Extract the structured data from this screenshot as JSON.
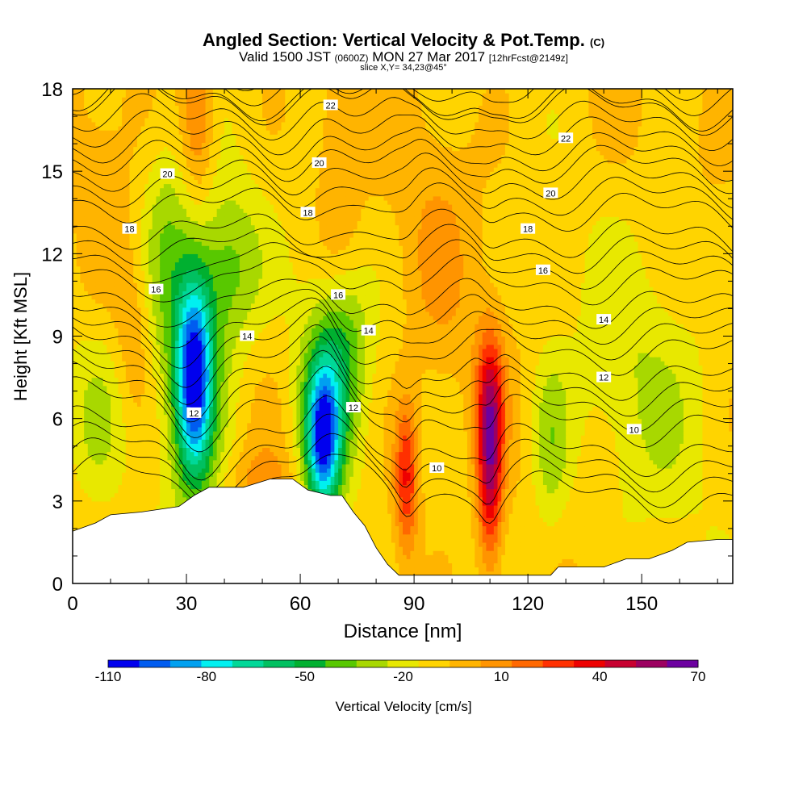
{
  "chart_data": {
    "type": "heatmap",
    "title": "Angled Section: Vertical Velocity & Pot.Temp.",
    "title_unit": "(C)",
    "subtitle_main": "Valid 1500 JST",
    "subtitle_utc": "(0600Z)",
    "subtitle_date": "MON 27 Mar 2017",
    "subtitle_run": "[12hrFcst@2149z]",
    "slice_label": "slice X,Y= 34,23@45°",
    "xlabel": "Distance [nm]",
    "ylabel": "Height [Kft MSL]",
    "xlim": [
      0,
      174
    ],
    "ylim": [
      0,
      18
    ],
    "xticks": [
      0,
      30,
      60,
      90,
      120,
      150
    ],
    "yticks": [
      0,
      3,
      6,
      9,
      12,
      15,
      18
    ],
    "grid": false,
    "colorbar": {
      "label": "Vertical Velocity [cm/s]",
      "ticks": [
        -110,
        -80,
        -50,
        -20,
        10,
        40,
        70
      ],
      "min": -110,
      "max": 70,
      "step": 10,
      "colors": [
        "#0000ee",
        "#005cf0",
        "#00a0f0",
        "#00f0f0",
        "#00d898",
        "#00c060",
        "#00b030",
        "#58c800",
        "#a8d800",
        "#e8e800",
        "#ffd400",
        "#ffb400",
        "#ff9400",
        "#ff6800",
        "#ff3000",
        "#ee0000",
        "#c80030",
        "#9c0060",
        "#6c00a0"
      ]
    },
    "terrain": [
      [
        0,
        1.9
      ],
      [
        6,
        2.2
      ],
      [
        10,
        2.5
      ],
      [
        18,
        2.6
      ],
      [
        28,
        2.8
      ],
      [
        32,
        3.2
      ],
      [
        36,
        3.5
      ],
      [
        45,
        3.5
      ],
      [
        52,
        3.8
      ],
      [
        58,
        3.8
      ],
      [
        62,
        3.4
      ],
      [
        68,
        3.2
      ],
      [
        71,
        3.2
      ],
      [
        74,
        2.6
      ],
      [
        77,
        2.1
      ],
      [
        80,
        1.3
      ],
      [
        83,
        0.7
      ],
      [
        86,
        0.3
      ],
      [
        88,
        0.3
      ],
      [
        92,
        0.3
      ],
      [
        100,
        0.3
      ],
      [
        108,
        0.3
      ],
      [
        114,
        0.3
      ],
      [
        120,
        0.3
      ],
      [
        126,
        0.3
      ],
      [
        128,
        0.6
      ],
      [
        140,
        0.6
      ],
      [
        146,
        0.9
      ],
      [
        152,
        0.9
      ],
      [
        158,
        1.2
      ],
      [
        162,
        1.5
      ],
      [
        170,
        1.6
      ],
      [
        174,
        1.6
      ]
    ],
    "velocity_cells": [
      {
        "x": 32,
        "y": 7.5,
        "sx": 3.2,
        "sy": 2.4,
        "value": -80
      },
      {
        "x": 32,
        "y": 8.0,
        "sx": 6.5,
        "sy": 3.8,
        "value": -35
      },
      {
        "x": 42,
        "y": 11.5,
        "sx": 6,
        "sy": 2.2,
        "value": -28
      },
      {
        "x": 66,
        "y": 5.2,
        "sx": 3,
        "sy": 1.8,
        "value": -75
      },
      {
        "x": 67,
        "y": 6.5,
        "sx": 6,
        "sy": 2.8,
        "value": -40
      },
      {
        "x": 72,
        "y": 9.0,
        "sx": 4.5,
        "sy": 1.8,
        "value": -18
      },
      {
        "x": 24,
        "y": 13.0,
        "sx": 4.5,
        "sy": 3.0,
        "value": -20
      },
      {
        "x": 88,
        "y": 3.8,
        "sx": 2.2,
        "sy": 1.9,
        "value": 45
      },
      {
        "x": 110,
        "y": 4.4,
        "sx": 2.3,
        "sy": 2.6,
        "value": 62
      },
      {
        "x": 110,
        "y": 7.0,
        "sx": 3.0,
        "sy": 1.8,
        "value": 22
      },
      {
        "x": 33,
        "y": 17,
        "sx": 3,
        "sy": 2.2,
        "value": 28
      },
      {
        "x": 70,
        "y": 15,
        "sx": 4,
        "sy": 3.0,
        "value": 14
      },
      {
        "x": 96,
        "y": 12,
        "sx": 7,
        "sy": 3.5,
        "value": 10
      },
      {
        "x": 16,
        "y": 8.8,
        "sx": 3.5,
        "sy": 2.2,
        "value": 15
      },
      {
        "x": 6,
        "y": 14,
        "sx": 5,
        "sy": 3,
        "value": 8
      },
      {
        "x": 50,
        "y": 3.8,
        "sx": 6,
        "sy": 0.8,
        "value": 14
      },
      {
        "x": 150,
        "y": 7,
        "sx": 14,
        "sy": 4,
        "value": -16
      },
      {
        "x": 126,
        "y": 5,
        "sx": 3.5,
        "sy": 2.5,
        "value": -22
      },
      {
        "x": 6,
        "y": 6,
        "sx": 6,
        "sy": 2.5,
        "value": -16
      }
    ],
    "isentropes": [
      {
        "label": "10",
        "base": 3.5,
        "labels": [
          [
            96,
            4.2
          ],
          [
            148,
            5.6
          ]
        ]
      },
      {
        "label": "12",
        "base": 6.2,
        "labels": [
          [
            32,
            6.2
          ],
          [
            74,
            6.4
          ],
          [
            140,
            7.5
          ]
        ]
      },
      {
        "label": "14",
        "base": 8.6,
        "labels": [
          [
            46,
            9.0
          ],
          [
            78,
            9.2
          ],
          [
            140,
            9.6
          ]
        ]
      },
      {
        "label": "16",
        "base": 11.1,
        "labels": [
          [
            22,
            10.7
          ],
          [
            70,
            10.5
          ],
          [
            124,
            11.4
          ]
        ]
      },
      {
        "label": "18",
        "base": 13.7,
        "labels": [
          [
            15,
            12.9
          ],
          [
            62,
            13.5
          ],
          [
            120,
            12.9
          ]
        ]
      },
      {
        "label": "20",
        "base": 15.8,
        "labels": [
          [
            25,
            14.9
          ],
          [
            65,
            15.3
          ],
          [
            126,
            14.2
          ]
        ]
      },
      {
        "label": "22",
        "base": 17.6,
        "labels": [
          [
            68,
            17.4
          ],
          [
            130,
            16.2
          ]
        ]
      }
    ]
  }
}
